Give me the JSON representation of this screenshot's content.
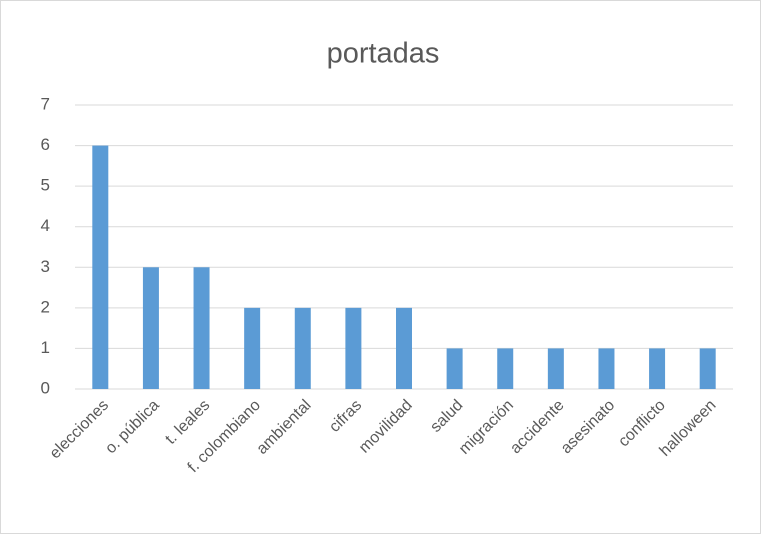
{
  "chart_data": {
    "type": "bar",
    "title": "portadas",
    "categories": [
      "elecciones",
      "o. pública",
      "t. leales",
      "f. colombiano",
      "ambiental",
      "cifras",
      "movilidad",
      "salud",
      "migración",
      "accidente",
      "asesinato",
      "conflicto",
      "halloween"
    ],
    "values": [
      6,
      3,
      3,
      2,
      2,
      2,
      2,
      1,
      1,
      1,
      1,
      1,
      1
    ],
    "color": "#5b9bd5",
    "ylim": [
      0,
      7
    ],
    "yticks": [
      0,
      1,
      2,
      3,
      4,
      5,
      6,
      7
    ],
    "grid": true
  }
}
